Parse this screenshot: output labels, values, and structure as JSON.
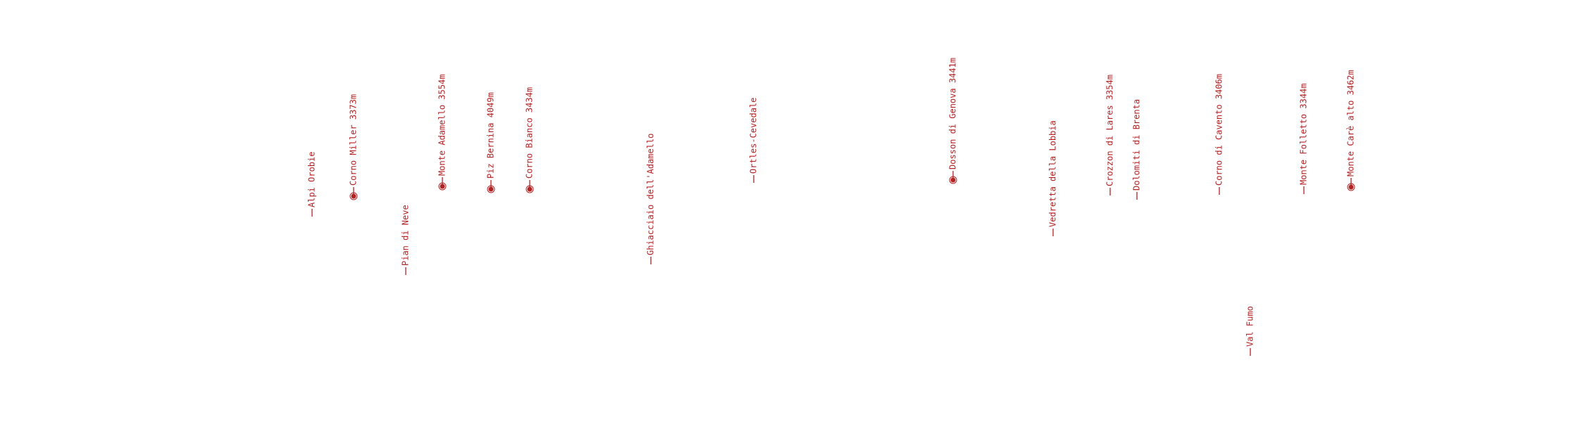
{
  "labels": [
    {
      "text": "Alpi Orobie",
      "marked": false
    },
    {
      "text": "Corno Miller 3373m",
      "marked": true
    },
    {
      "text": "Pian di Neve",
      "marked": false
    },
    {
      "text": "Monte Adamello 3554m",
      "marked": true
    },
    {
      "text": "Piz Bernina 4049m",
      "marked": true
    },
    {
      "text": "Corno Bianco 3434m",
      "marked": true
    },
    {
      "text": "Ghiacciaio dell'Adamello",
      "marked": false
    },
    {
      "text": "Ortles-Cevedale",
      "marked": false
    },
    {
      "text": "Dosson di Genova 3441m",
      "marked": true
    },
    {
      "text": "Vedretta della Lobbia",
      "marked": false
    },
    {
      "text": "Crozzon di Lares 3354m",
      "marked": false
    },
    {
      "text": "Dolomiti di Brenta",
      "marked": false
    },
    {
      "text": "Corno di Cavento 3406m",
      "marked": false
    },
    {
      "text": "Val Fumo",
      "marked": false
    },
    {
      "text": "Monte Folletto 3344m",
      "marked": false
    },
    {
      "text": "Monte Carè alto 3462m",
      "marked": true
    }
  ]
}
